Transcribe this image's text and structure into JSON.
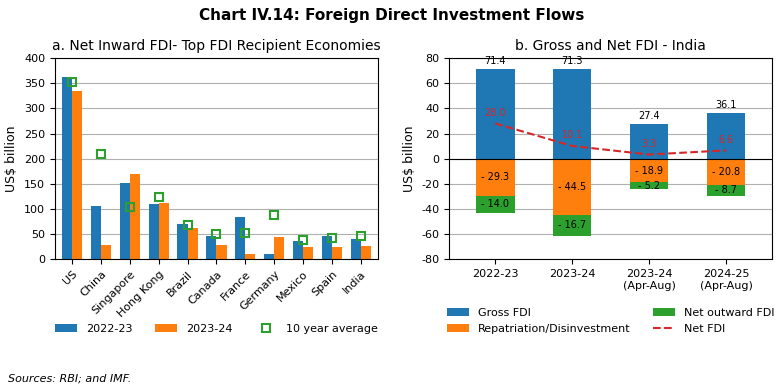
{
  "title": "Chart IV.14: Foreign Direct Investment Flows",
  "annotations": [
    "Sources: RBI; and IMF."
  ],
  "chart_data": [
    {
      "type": "bar",
      "title": "a. Net Inward FDI- Top FDI Recipient Economies",
      "ylabel": "US$ billion",
      "categories": [
        "US",
        "China",
        "Singapore",
        "Hong Kong",
        "Brazil",
        "Canada",
        "France",
        "Germany",
        "Mexico",
        "Spain",
        "India"
      ],
      "series": [
        {
          "name": "2022-23",
          "values": [
            362,
            105,
            152,
            110,
            71,
            46,
            84,
            10,
            36,
            46,
            41
          ]
        },
        {
          "name": "2023-24",
          "values": [
            335,
            29,
            170,
            112,
            63,
            29,
            10,
            44,
            25,
            24,
            26
          ]
        },
        {
          "name": "10 year average",
          "type": "scatter",
          "marker": "square",
          "values": [
            353,
            210,
            104,
            124,
            69,
            50,
            52,
            88,
            38,
            42,
            47
          ]
        }
      ],
      "ylim": [
        0,
        400
      ],
      "yticks": [
        0,
        50,
        100,
        150,
        200,
        250,
        300,
        350,
        400
      ],
      "grid": true,
      "legend": "lower center"
    },
    {
      "type": "bar",
      "stacked": true,
      "data_labels": true,
      "title": "b. Gross and Net FDI - India",
      "ylabel": "US$ billion",
      "categories": [
        "2022-23",
        "2023-24",
        "2023-24\n(Apr-Aug)",
        "2024-25\n(Apr-Aug)"
      ],
      "series": [
        {
          "name": "Gross FDI",
          "values": [
            71.4,
            71.3,
            27.4,
            36.1
          ]
        },
        {
          "name": "Repatriation/Disinvestment",
          "values": [
            -29.3,
            -44.5,
            -18.9,
            -20.8
          ],
          "value_labels": [
            "- 29.3",
            "- 44.5",
            "- 18.9",
            "- 20.8"
          ]
        },
        {
          "name": "Net outward FDI",
          "values": [
            -14.0,
            -16.7,
            -5.2,
            -8.7
          ],
          "value_labels": [
            "- 14.0",
            "- 16.7",
            "- 5.2",
            "- 8.7"
          ]
        },
        {
          "name": "Net FDI",
          "type": "line",
          "line_style": "dashed",
          "values": [
            28.0,
            10.1,
            3.3,
            6.6
          ],
          "value_labels": [
            "28.0",
            "10.1",
            "3.3",
            "6.6"
          ]
        }
      ],
      "ylim": [
        -80,
        80
      ],
      "yticks": [
        -80,
        -60,
        -40,
        -20,
        0,
        20,
        40,
        60,
        80
      ],
      "grid": true,
      "legend": "lower center"
    }
  ]
}
